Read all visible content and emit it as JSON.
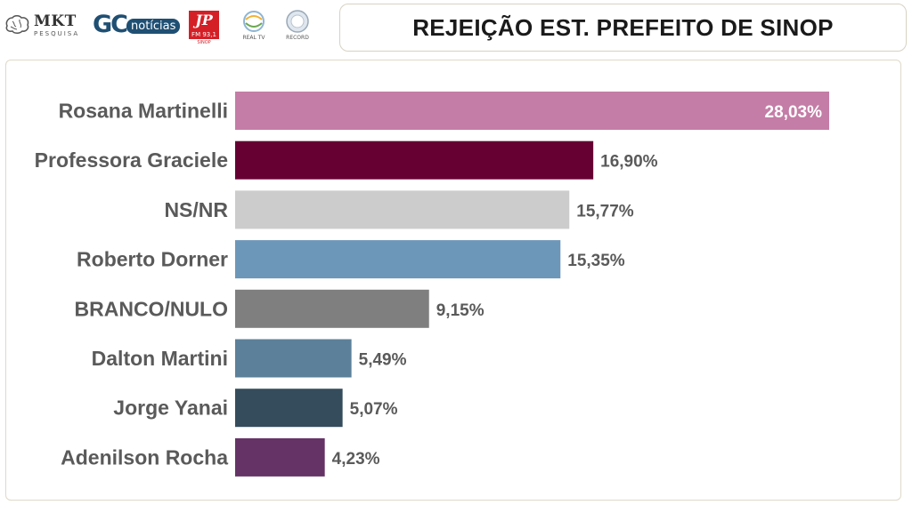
{
  "header": {
    "title": "REJEIÇÃO EST. PREFEITO DE SINOP",
    "logos": [
      {
        "name": "mkt-pesquisa",
        "text": "MKT",
        "subtext": "PESQUISA"
      },
      {
        "name": "gc-noticias",
        "text": "GC",
        "subtext": "notícias"
      },
      {
        "name": "jovem-pan",
        "text": "JP",
        "subtext": "FM 93,1",
        "foot": "SINOP"
      },
      {
        "name": "real-tv",
        "text": "REAL TV"
      },
      {
        "name": "record",
        "text": "RECORD"
      }
    ]
  },
  "chart_data": {
    "type": "bar",
    "orientation": "horizontal",
    "title": "REJEIÇÃO EST. PREFEITO DE SINOP",
    "categories": [
      "Rosana Martinelli",
      "Professora Graciele",
      "NS/NR",
      "Roberto Dorner",
      "BRANCO/NULO",
      "Dalton Martini",
      "Jorge Yanai",
      "Adenilson Rocha"
    ],
    "values": [
      28.03,
      16.9,
      15.77,
      15.35,
      9.15,
      5.49,
      5.07,
      4.23
    ],
    "value_labels": [
      "28,03%",
      "16,90%",
      "15,77%",
      "15,35%",
      "9,15%",
      "5,49%",
      "5,07%",
      "4,23%"
    ],
    "colors": [
      "#c47da6",
      "#660033",
      "#cccccc",
      "#6d97b8",
      "#7f7f7f",
      "#5c8099",
      "#344c5c",
      "#663366"
    ],
    "xlim": [
      0,
      28.03
    ],
    "grid": false,
    "legend": "none"
  }
}
